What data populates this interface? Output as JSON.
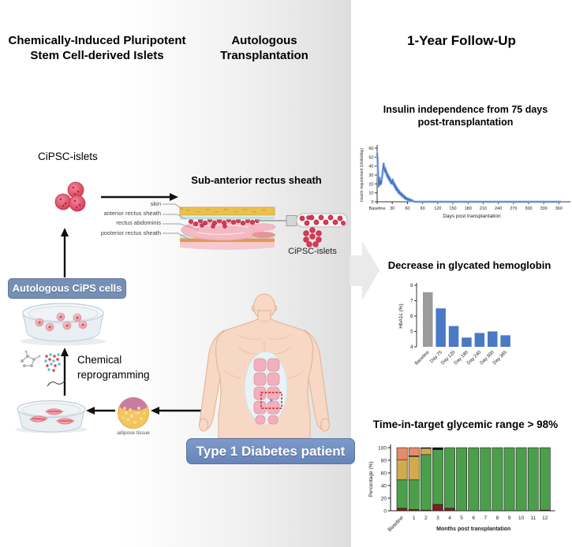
{
  "titles": {
    "left": "Chemically-Induced Pluripotent\nStem Cell-derived Islets",
    "middle": "Autologous\nTransplantation",
    "right": "1-Year Follow-Up"
  },
  "left_panel": {
    "cipsc_islets_label": "CiPSC-islets",
    "cips_badge": "Autologous CiPS cells",
    "chemical_reprogramming": "Chemical\nreprogramming",
    "adipose_label": "adipose tissue"
  },
  "middle_panel": {
    "sheath_title": "Sub-anterior rectus sheath",
    "layer_labels": [
      "skin",
      "anterior rectus sheath",
      "rectus abdominis",
      "posterior rectus sheath"
    ],
    "islets_label": "CiPSC-islets",
    "patient_badge": "Type 1 Diabetes patient"
  },
  "colors": {
    "badge_blue": "#6f8cc2",
    "badge_steel": "#7690b5",
    "islet_red": "#d63a55",
    "line_blue": "#4573c6",
    "line_blue_light": "#a8c2e8",
    "bar_blue": "#4a79c5",
    "bar_gray": "#9b9b9b",
    "tir_green": "#4c9f4a",
    "tir_tan": "#d1a94f",
    "tir_salmon": "#e78b6b",
    "tir_dark_red": "#7e1f1d",
    "tir_black": "#111111",
    "arrow_gray": "#eaeaea"
  },
  "chart_data": [
    {
      "id": "insulin",
      "type": "line",
      "title": "Insulin independence from 75 days\npost-transplantation",
      "xlabel": "Days post transplantation",
      "ylabel": "Insulin requirement (Units/day)",
      "ylim": [
        0,
        60
      ],
      "xlim": [
        0,
        375
      ],
      "yticks": [
        0,
        10,
        20,
        30,
        40,
        50,
        60
      ],
      "xticks": [
        {
          "v": 0,
          "label": "Baseline"
        },
        {
          "v": 30,
          "label": "30"
        },
        {
          "v": 60,
          "label": "60"
        },
        {
          "v": 90,
          "label": "90"
        },
        {
          "v": 120,
          "label": "120"
        },
        {
          "v": 150,
          "label": "150"
        },
        {
          "v": 180,
          "label": "180"
        },
        {
          "v": 210,
          "label": "210"
        },
        {
          "v": 240,
          "label": "240"
        },
        {
          "v": 270,
          "label": "270"
        },
        {
          "v": 300,
          "label": "300"
        },
        {
          "v": 330,
          "label": "330"
        },
        {
          "v": 360,
          "label": "360"
        }
      ],
      "points": [
        [
          0,
          55
        ],
        [
          1,
          46
        ],
        [
          2,
          28
        ],
        [
          3,
          17
        ],
        [
          4,
          21
        ],
        [
          5,
          27
        ],
        [
          6,
          19
        ],
        [
          7,
          23
        ],
        [
          8,
          20
        ],
        [
          9,
          25
        ],
        [
          10,
          28
        ],
        [
          11,
          33
        ],
        [
          12,
          39
        ],
        [
          13,
          43
        ],
        [
          14,
          37
        ],
        [
          15,
          34
        ],
        [
          16,
          38
        ],
        [
          17,
          32
        ],
        [
          18,
          35
        ],
        [
          19,
          29
        ],
        [
          20,
          32
        ],
        [
          21,
          27
        ],
        [
          22,
          30
        ],
        [
          23,
          25
        ],
        [
          24,
          28
        ],
        [
          25,
          23
        ],
        [
          26,
          26
        ],
        [
          27,
          21
        ],
        [
          28,
          24
        ],
        [
          29,
          20
        ],
        [
          30,
          22
        ],
        [
          31,
          25
        ],
        [
          32,
          19
        ],
        [
          33,
          22
        ],
        [
          34,
          17
        ],
        [
          35,
          20
        ],
        [
          36,
          15
        ],
        [
          37,
          18
        ],
        [
          38,
          13
        ],
        [
          39,
          16
        ],
        [
          40,
          12
        ],
        [
          41,
          14
        ],
        [
          42,
          10
        ],
        [
          43,
          13
        ],
        [
          44,
          9
        ],
        [
          45,
          11
        ],
        [
          46,
          8
        ],
        [
          47,
          10
        ],
        [
          48,
          7
        ],
        [
          49,
          9
        ],
        [
          50,
          6
        ],
        [
          51,
          8
        ],
        [
          52,
          5
        ],
        [
          53,
          7
        ],
        [
          54,
          4
        ],
        [
          55,
          6
        ],
        [
          56,
          3
        ],
        [
          57,
          5
        ],
        [
          58,
          3
        ],
        [
          59,
          4
        ],
        [
          60,
          2
        ],
        [
          61,
          4
        ],
        [
          62,
          2
        ],
        [
          63,
          3
        ],
        [
          64,
          1
        ],
        [
          65,
          3
        ],
        [
          66,
          1
        ],
        [
          67,
          2
        ],
        [
          68,
          1
        ],
        [
          69,
          2
        ],
        [
          70,
          1
        ],
        [
          71,
          1
        ],
        [
          72,
          0.5
        ],
        [
          74,
          0
        ],
        [
          120,
          0
        ],
        [
          180,
          0
        ],
        [
          240,
          0
        ],
        [
          300,
          0
        ],
        [
          365,
          0
        ]
      ]
    },
    {
      "id": "hba1c",
      "type": "bar",
      "title": "Decrease in glycated hemoglobin",
      "ylabel": "HbA1c (%)",
      "ylim": [
        4,
        8
      ],
      "yticks": [
        4,
        5,
        6,
        7,
        8
      ],
      "categories": [
        "Baseline",
        "Day 75",
        "Day 120",
        "Day 180",
        "Day 240",
        "Day 300",
        "Day 365"
      ],
      "values": [
        7.55,
        6.5,
        5.35,
        4.6,
        4.9,
        5.0,
        4.75
      ],
      "bar_colors": [
        "gray",
        "blue",
        "blue",
        "blue",
        "blue",
        "blue",
        "blue"
      ]
    },
    {
      "id": "tir",
      "type": "stacked_bar",
      "title": "Time-in-target glycemic range > 98%",
      "xlabel": "Months post transplantation",
      "ylabel": "Percentage (%)",
      "ylim": [
        0,
        100
      ],
      "yticks": [
        0,
        20,
        40,
        60,
        80,
        100
      ],
      "categories": [
        "Baseline",
        "1",
        "2",
        "3",
        "4",
        "5",
        "6",
        "7",
        "8",
        "9",
        "10",
        "11",
        "12"
      ],
      "series_colors": {
        "dark_red": "#7e1f1d",
        "green": "#4c9f4a",
        "tan": "#d1a94f",
        "salmon": "#e78b6b",
        "black": "#111111"
      },
      "bars": [
        [
          [
            "dark_red",
            4
          ],
          [
            "green",
            45
          ],
          [
            "tan",
            32
          ],
          [
            "salmon",
            19
          ]
        ],
        [
          [
            "dark_red",
            2
          ],
          [
            "green",
            47
          ],
          [
            "tan",
            37
          ],
          [
            "black",
            1
          ],
          [
            "salmon",
            13
          ]
        ],
        [
          [
            "dark_red",
            1
          ],
          [
            "green",
            88
          ],
          [
            "tan",
            10
          ],
          [
            "black",
            1
          ]
        ],
        [
          [
            "dark_red",
            10
          ],
          [
            "green",
            87
          ],
          [
            "black",
            3
          ]
        ],
        [
          [
            "dark_red",
            4
          ],
          [
            "green",
            96
          ]
        ],
        [
          [
            "green",
            100
          ]
        ],
        [
          [
            "green",
            100
          ]
        ],
        [
          [
            "green",
            100
          ]
        ],
        [
          [
            "green",
            100
          ]
        ],
        [
          [
            "green",
            100
          ]
        ],
        [
          [
            "green",
            100
          ]
        ],
        [
          [
            "green",
            100
          ]
        ],
        [
          [
            "dark_red",
            1
          ],
          [
            "green",
            99
          ]
        ]
      ]
    }
  ]
}
